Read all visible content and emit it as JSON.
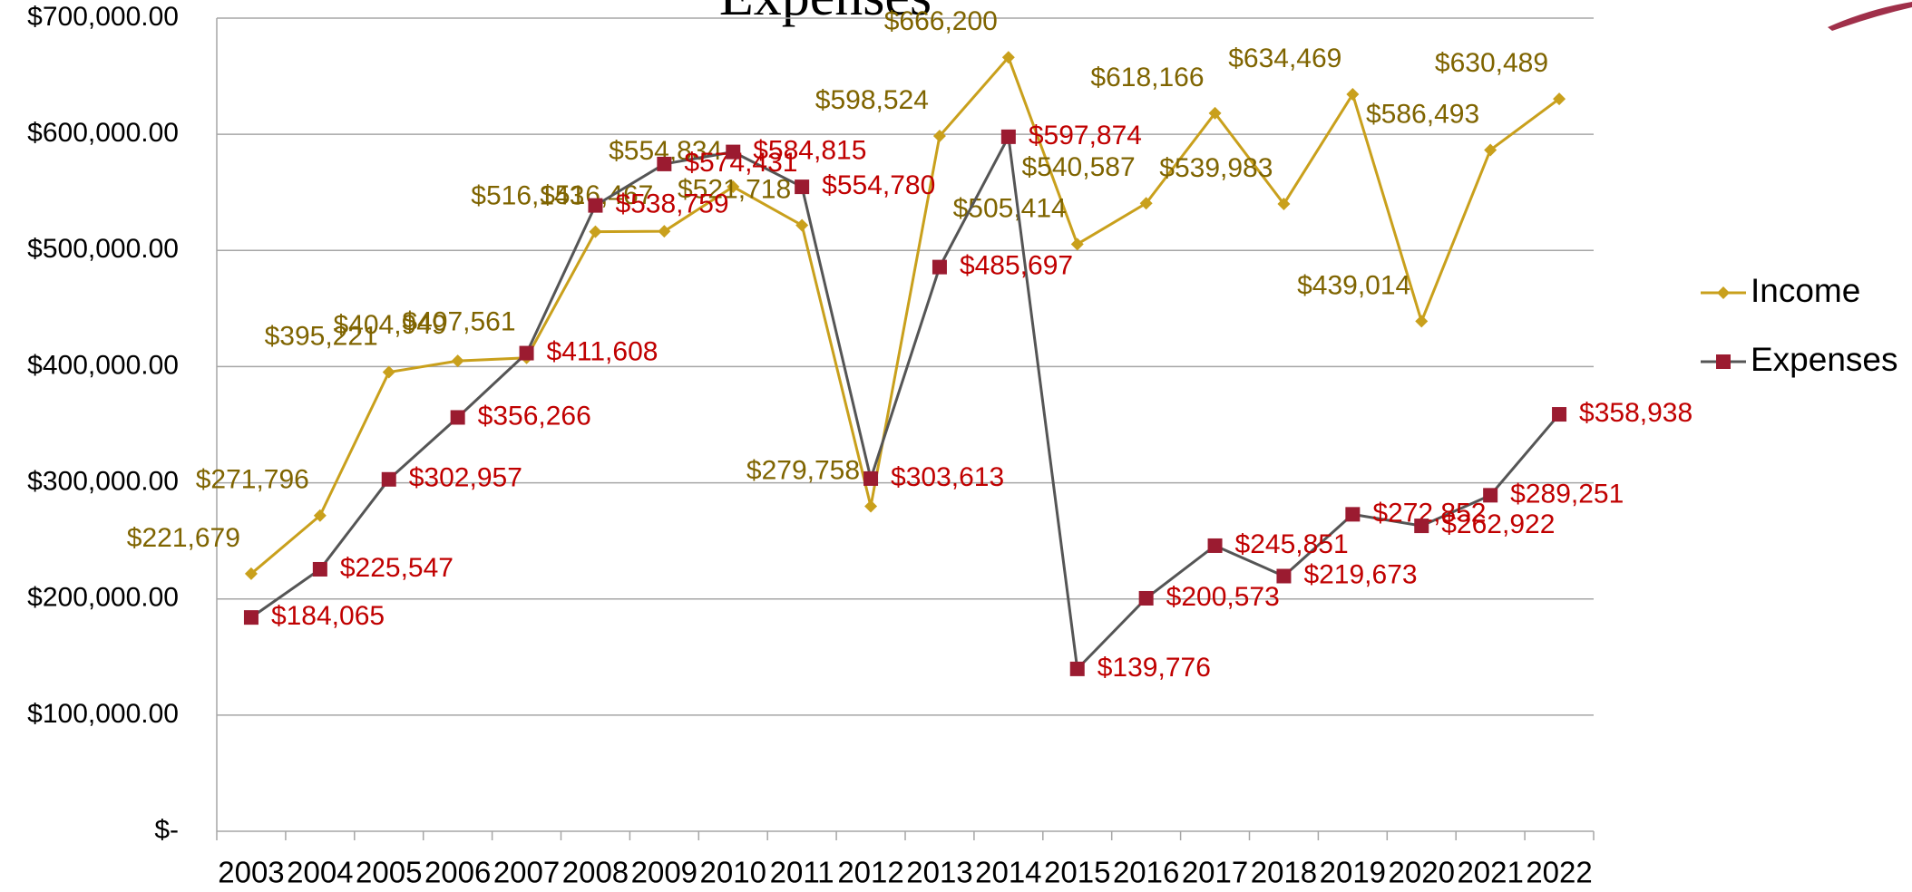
{
  "chart_data": {
    "type": "line",
    "title": "Expenses",
    "categories": [
      "2003",
      "2004",
      "2005",
      "2006",
      "2007",
      "2008",
      "2009",
      "2010",
      "2011",
      "2012",
      "2013",
      "2014",
      "2015",
      "2016",
      "2017",
      "2018",
      "2019",
      "2020",
      "2021",
      "2022"
    ],
    "series": [
      {
        "name": "Income",
        "color": "#c9a01c",
        "label_color": "#7f6400",
        "marker": "diamond",
        "values": [
          221679,
          271796,
          395221,
          404949,
          407561,
          516143,
          516467,
          554834,
          521718,
          279758,
          598524,
          666200,
          505414,
          540587,
          618166,
          539983,
          634469,
          439014,
          586493,
          630489
        ],
        "value_labels": [
          "$221,679",
          "$271,796",
          "$395,221",
          "$404,949",
          "$407,561",
          "$516,143",
          "$516,467",
          "$554,834",
          "$521,718",
          "$279,758",
          "$598,524",
          "$666,200",
          "$505,414",
          "$540,587",
          "$618,166",
          "$539,983",
          "$634,469",
          "$439,014",
          "$586,493",
          "$630,489"
        ]
      },
      {
        "name": "Expenses",
        "color": "#555555",
        "marker_color": "#9b1b30",
        "label_color": "#c00000",
        "marker": "square",
        "values": [
          184065,
          225547,
          302957,
          356266,
          411608,
          538759,
          574431,
          584815,
          554780,
          303613,
          485697,
          597874,
          139776,
          200573,
          245851,
          219673,
          272852,
          262922,
          289251,
          358938
        ],
        "value_labels": [
          "$184,065",
          "$225,547",
          "$302,957",
          "$356,266",
          "$411,608",
          "$538,759",
          "$574,431",
          "$584,815",
          "$554,780",
          "$303,613",
          "$485,697",
          "$597,874",
          "$139,776",
          "$200,573",
          "$245,851",
          "$219,673",
          "$272,852",
          "$262,922",
          "$289,251",
          "$358,938"
        ]
      }
    ],
    "ylim": [
      0,
      700000
    ],
    "yticks": [
      {
        "value": 0,
        "label": "$-"
      },
      {
        "value": 100000,
        "label": "$100,000.00"
      },
      {
        "value": 200000,
        "label": "$200,000.00"
      },
      {
        "value": 300000,
        "label": "$300,000.00"
      },
      {
        "value": 400000,
        "label": "$400,000.00"
      },
      {
        "value": 500000,
        "label": "$500,000.00"
      },
      {
        "value": 600000,
        "label": "$600,000.00"
      },
      {
        "value": 700000,
        "label": "$700,000.00"
      }
    ],
    "grid": true,
    "legend": "right"
  }
}
